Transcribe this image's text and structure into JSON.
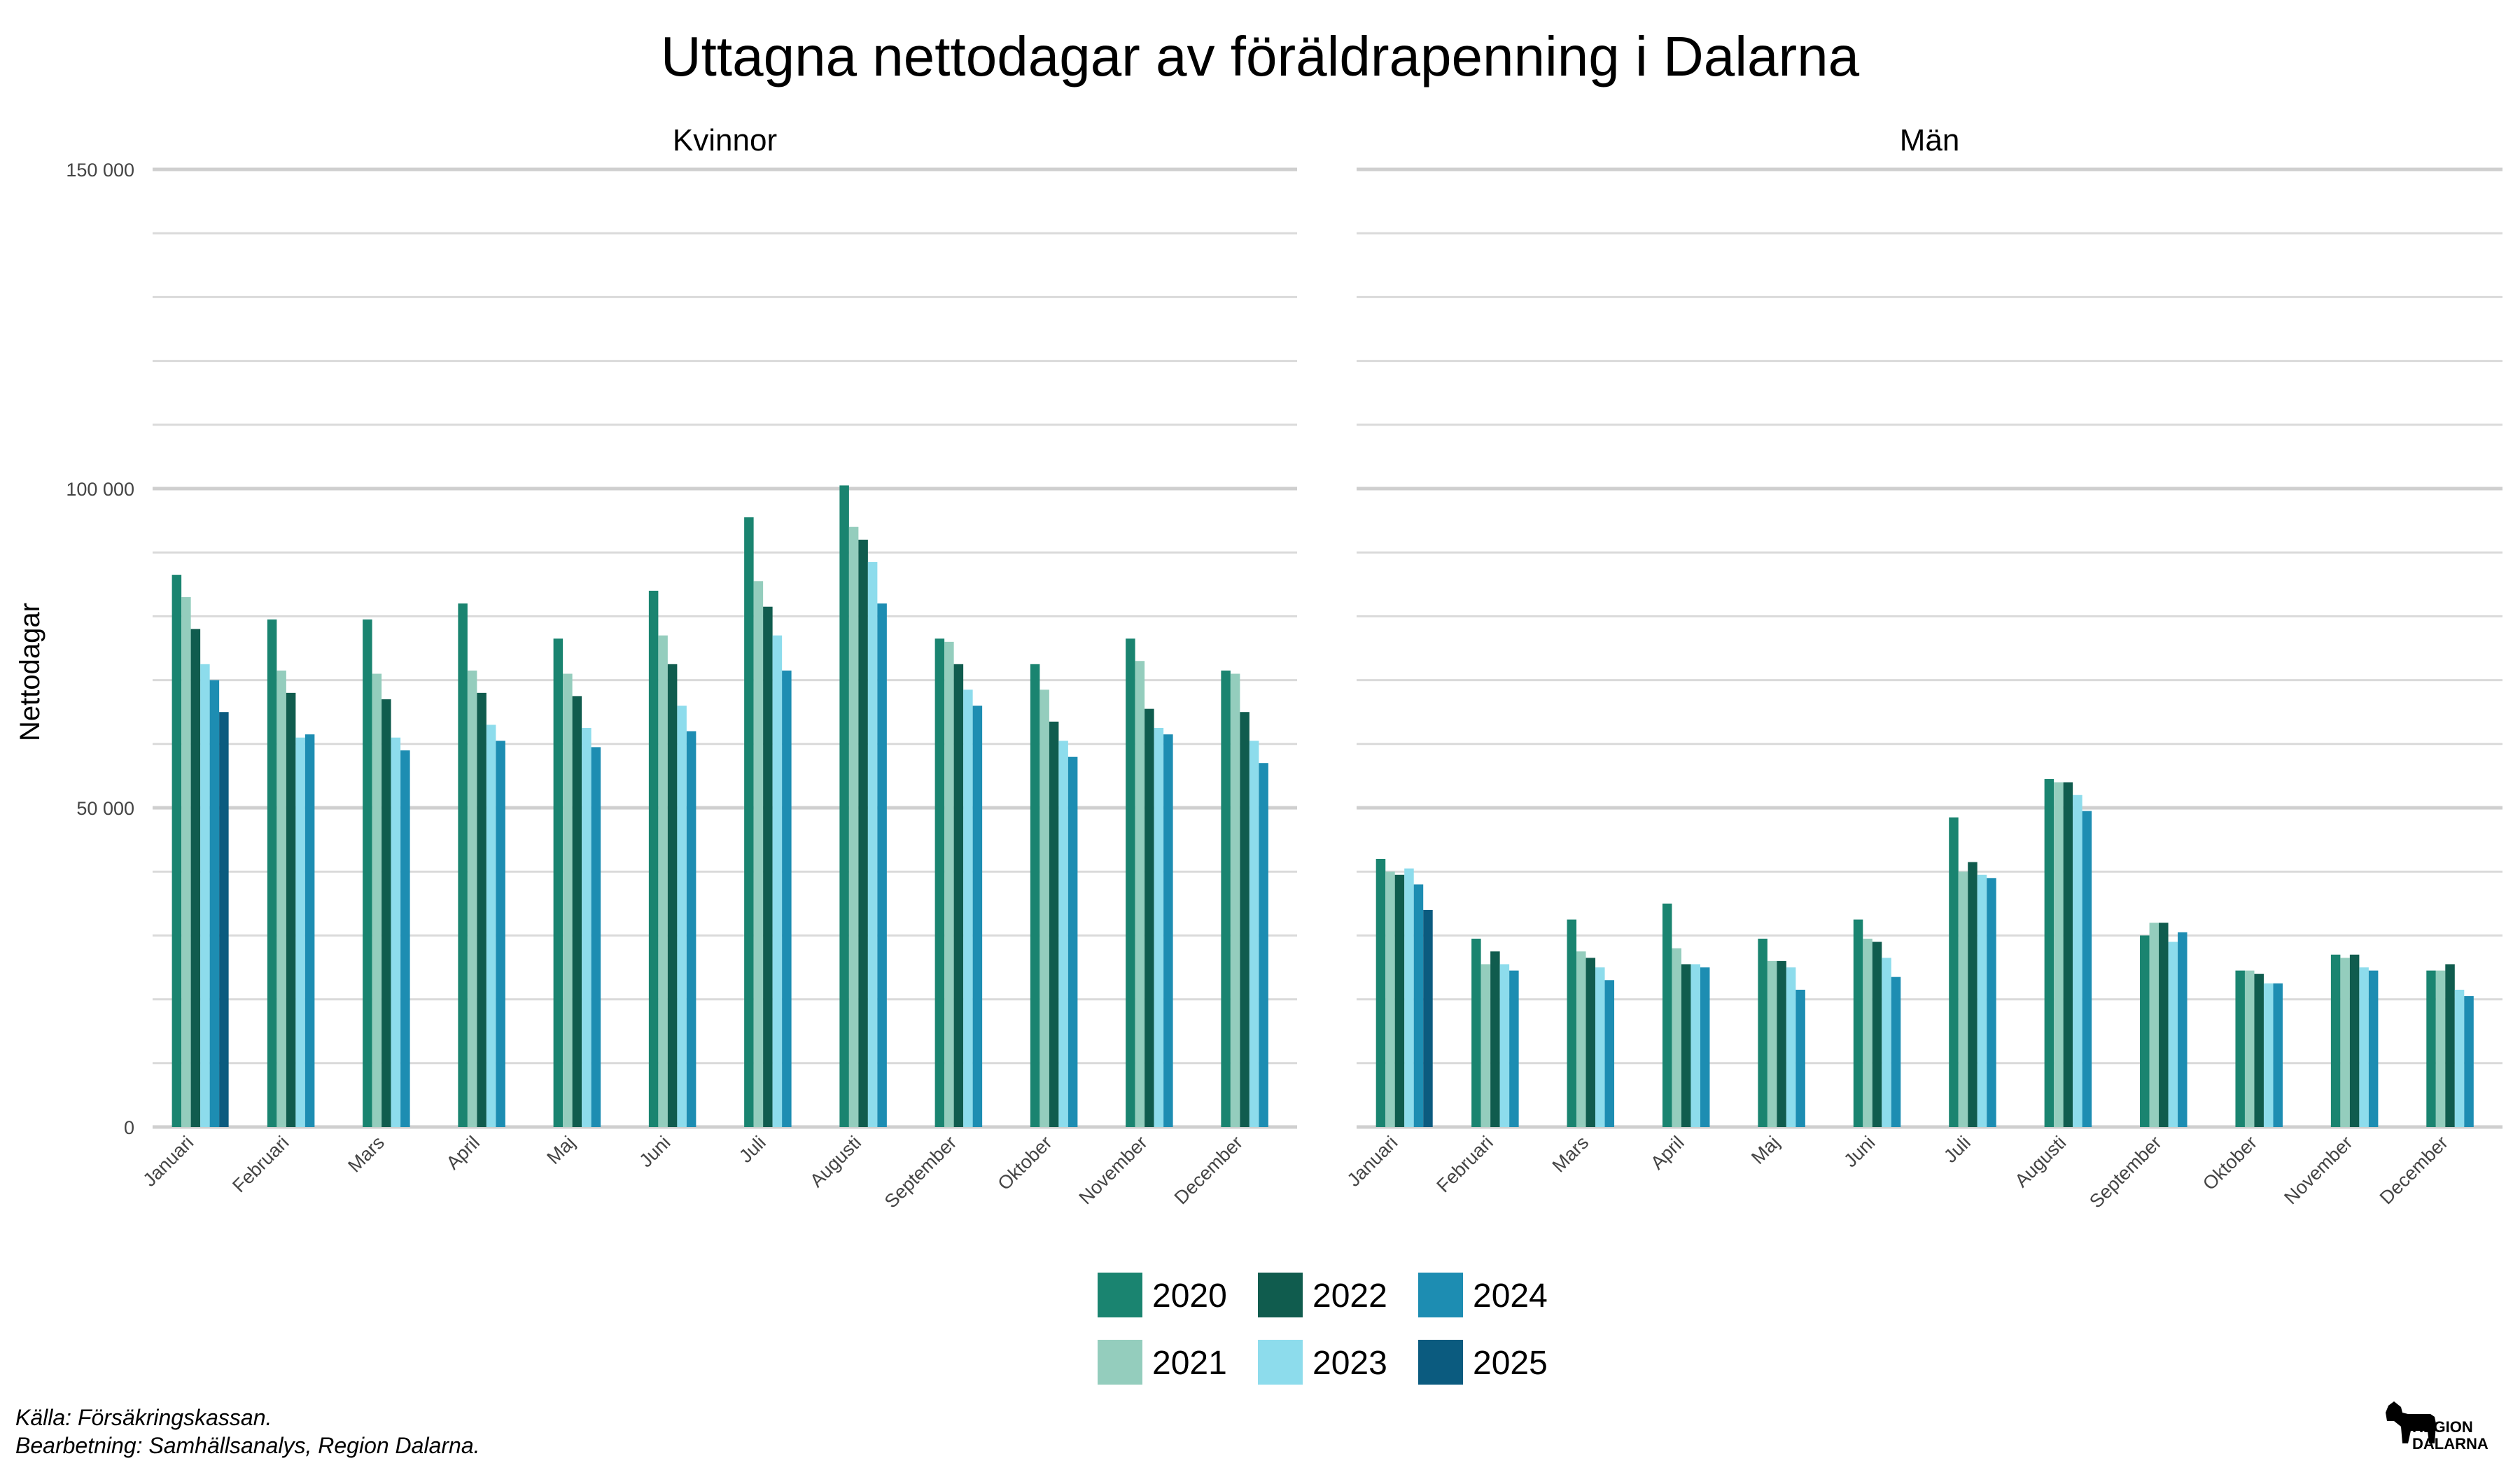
{
  "chart_data": {
    "type": "bar",
    "title": "Uttagna nettodagar av föräldrapenning i Dalarna",
    "ylabel": "Nettodagar",
    "xlabel": "",
    "ylim": [
      0,
      150000
    ],
    "yticks": [
      0,
      50000,
      100000,
      150000
    ],
    "ytick_labels": [
      "0",
      "50 000",
      "100 000",
      "150 000"
    ],
    "grid": true,
    "legend_position": "bottom",
    "categories": [
      "Januari",
      "Februari",
      "Mars",
      "April",
      "Maj",
      "Juni",
      "Juli",
      "Augusti",
      "September",
      "Oktober",
      "November",
      "December"
    ],
    "series_names": [
      "2020",
      "2021",
      "2022",
      "2023",
      "2024",
      "2025"
    ],
    "colors": {
      "2020": "#1a8470",
      "2021": "#94cdbd",
      "2022": "#105c4e",
      "2023": "#8ddcec",
      "2024": "#1d8db2",
      "2025": "#0b5b7f"
    },
    "panels": [
      {
        "title": "Kvinnor",
        "series": [
          {
            "name": "2020",
            "values": [
              86500,
              79500,
              79500,
              82000,
              76500,
              84000,
              95500,
              100500,
              76500,
              72500,
              76500,
              71500
            ]
          },
          {
            "name": "2021",
            "values": [
              83000,
              71500,
              71000,
              71500,
              71000,
              77000,
              85500,
              94000,
              76000,
              68500,
              73000,
              71000
            ]
          },
          {
            "name": "2022",
            "values": [
              78000,
              68000,
              67000,
              68000,
              67500,
              72500,
              81500,
              92000,
              72500,
              63500,
              65500,
              65000
            ]
          },
          {
            "name": "2023",
            "values": [
              72500,
              61000,
              61000,
              63000,
              62500,
              66000,
              77000,
              88500,
              68500,
              60500,
              62500,
              60500
            ]
          },
          {
            "name": "2024",
            "values": [
              70000,
              61500,
              59000,
              60500,
              59500,
              62000,
              71500,
              82000,
              66000,
              58000,
              61500,
              57000
            ]
          },
          {
            "name": "2025",
            "values": [
              65000,
              null,
              null,
              null,
              null,
              null,
              null,
              null,
              null,
              null,
              null,
              null
            ]
          }
        ]
      },
      {
        "title": "Män",
        "series": [
          {
            "name": "2020",
            "values": [
              42000,
              29500,
              32500,
              35000,
              29500,
              32500,
              48500,
              54500,
              30000,
              24500,
              27000,
              24500
            ]
          },
          {
            "name": "2021",
            "values": [
              40000,
              25500,
              27500,
              28000,
              26000,
              29500,
              40000,
              54000,
              32000,
              24500,
              26500,
              24500
            ]
          },
          {
            "name": "2022",
            "values": [
              39500,
              27500,
              26500,
              25500,
              26000,
              29000,
              41500,
              54000,
              32000,
              24000,
              27000,
              25500
            ]
          },
          {
            "name": "2023",
            "values": [
              40500,
              25500,
              25000,
              25500,
              25000,
              26500,
              39500,
              52000,
              29000,
              22500,
              25000,
              21500
            ]
          },
          {
            "name": "2024",
            "values": [
              38000,
              24500,
              23000,
              25000,
              21500,
              23500,
              39000,
              49500,
              30500,
              22500,
              24500,
              20500
            ]
          },
          {
            "name": "2025",
            "values": [
              34000,
              null,
              null,
              null,
              null,
              null,
              null,
              null,
              null,
              null,
              null,
              null
            ]
          }
        ]
      }
    ]
  },
  "caption": {
    "line1": "Källa: Försäkringskassan.",
    "line2": "Bearbetning: Samhällsanalys, Region Dalarna."
  },
  "logo": {
    "line1": "REGION",
    "line2": "DALARNA"
  }
}
